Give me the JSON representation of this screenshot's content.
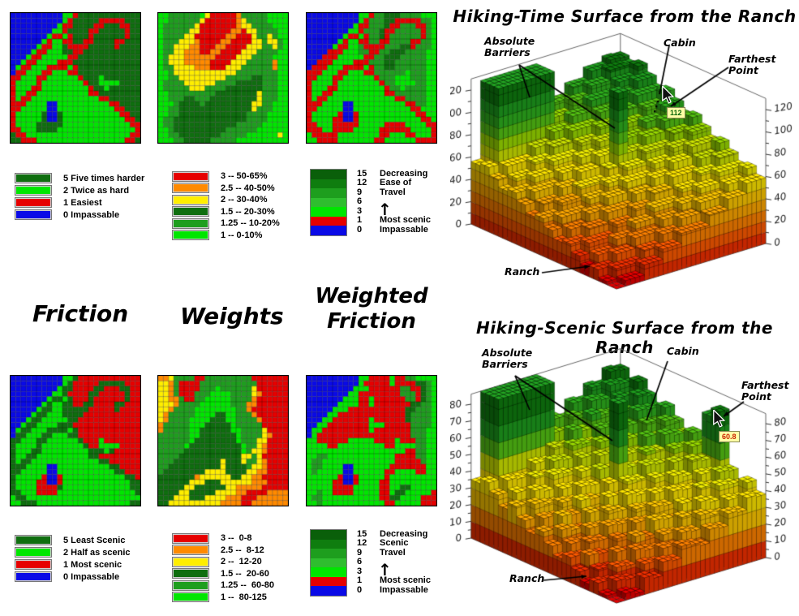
{
  "figure": {
    "section_labels": {
      "friction": "Friction",
      "weights": "Weights",
      "weighted_line1": "Weighted",
      "weighted_line2": "Friction"
    }
  },
  "icons": {
    "up_arrow": "↑"
  },
  "palette": {
    "B": "#0a0ae6",
    "R": "#e60000",
    "D": "#0f6e0f",
    "G": "#1e9e1e",
    "g": "#00e600",
    "Y": "#ffee00",
    "O": "#ff8a00"
  },
  "legends": {
    "friction_time": [
      {
        "color": "#0f6e0f",
        "label": "5 Five times harder"
      },
      {
        "color": "#00e600",
        "label": "2 Twice as hard"
      },
      {
        "color": "#e60000",
        "label": "1 Easiest"
      },
      {
        "color": "#0a0ae6",
        "label": "0 Impassable"
      }
    ],
    "weights_time": [
      {
        "color": "#e60000",
        "label": "3 -- 50-65%"
      },
      {
        "color": "#ff8a00",
        "label": "2.5 -- 40-50%"
      },
      {
        "color": "#ffee00",
        "label": "2 -- 30-40%"
      },
      {
        "color": "#0f6e0f",
        "label": "1.5 -- 20-30%"
      },
      {
        "color": "#1e9e1e",
        "label": "1.25 -- 10-20%"
      },
      {
        "color": "#00e600",
        "label": "1 -- 0-10%"
      }
    ],
    "ramp_time": {
      "bands": [
        {
          "color": "#0a5f0a",
          "num": "15",
          "word": "Decreasing"
        },
        {
          "color": "#0f7d0f",
          "num": "12",
          "word": "Ease of"
        },
        {
          "color": "#1e9e1e",
          "num": "9",
          "word": "Travel"
        },
        {
          "color": "#2fbe2f",
          "num": "6",
          "word": ""
        },
        {
          "color": "#00e600",
          "num": "3",
          "word": ""
        },
        {
          "color": "#e60000",
          "num": "1",
          "word": "Most scenic"
        },
        {
          "color": "#0a0ae6",
          "num": "0",
          "word": "Impassable"
        }
      ]
    },
    "friction_scenic": [
      {
        "color": "#0f6e0f",
        "label": "5 Least Scenic"
      },
      {
        "color": "#00e600",
        "label": "2 Half as scenic"
      },
      {
        "color": "#e60000",
        "label": "1 Most scenic"
      },
      {
        "color": "#0a0ae6",
        "label": "0 Impassable"
      }
    ],
    "weights_scenic": [
      {
        "color": "#e60000",
        "label": "3 --  0-8"
      },
      {
        "color": "#ff8a00",
        "label": "2.5 --  8-12"
      },
      {
        "color": "#ffee00",
        "label": "2 --  12-20"
      },
      {
        "color": "#0f6e0f",
        "label": "1.5 --  20-60"
      },
      {
        "color": "#1e9e1e",
        "label": "1.25 --  60-80"
      },
      {
        "color": "#00e600",
        "label": "1 --  80-125"
      }
    ],
    "ramp_scenic": {
      "bands": [
        {
          "color": "#0a5f0a",
          "num": "15",
          "word": "Decreasing"
        },
        {
          "color": "#0f7d0f",
          "num": "12",
          "word": "Scenic"
        },
        {
          "color": "#1e9e1e",
          "num": "9",
          "word": "Travel"
        },
        {
          "color": "#2fbe2f",
          "num": "6",
          "word": ""
        },
        {
          "color": "#00e600",
          "num": "3",
          "word": ""
        },
        {
          "color": "#e60000",
          "num": "1",
          "word": "Most scenic"
        },
        {
          "color": "#0a0ae6",
          "num": "0",
          "word": "Impassable"
        }
      ]
    }
  },
  "maps": [
    {
      "name": "hiking-friction",
      "rows": [
        "BBBBBBBBBBggRDDDDDDDDDDDD",
        "BBBBBBBBBBgRDDDDDRRRRRDDD",
        "BBBBBBBBBgRRDDDDRRDDDRRDD",
        "BBBBBBBBggRDDDDRRDDDDDRDD",
        "BBBBBBBgRRgRDDDRDDDDDDRDD",
        "BBBBBBgRggRRDDRRDDDDRRDDD",
        "BBBBBgRRggDRRRRDDDDDRDDDD",
        "BBBBgRRgggDDRRDDDDDDDDDDD",
        "BBBgRRgggggRRDDDDDDDDDDDD",
        "BBgRRggggRRRDDDDDDDDDDDDD",
        "BgRRgggRRRRgRDDDDDDDDDDDD",
        "BRRgggRRgggRRDDDDDDDDDDDD",
        "RRgggRRggggggRDDDgDDDDDDD",
        "RggggRggggggggRDDggggDDDD",
        "RgggRRgggggggggRDDgDDDDDD",
        "RggRRggggggggggRRDDDDDDDD",
        "RgRRgggggggggggggRRDDDDDD",
        "RRRggggBBggggggggggRRDDDD",
        "RRgggggBBgggggggggggRRDDD",
        "RgggggDBBDgggggggggggRRDD",
        "RgggggDBBDggggggggggggRRD",
        "RggggDDDDDgggggggggggggRR",
        "RRgggDDDDgggggggggggggggR",
        "DRRggggggggggggggggggggRR",
        "DDRRRgggggggggggggggggRRD"
      ]
    },
    {
      "name": "time-weights",
      "rows": [
        "ggGGGGGGgYRRRRROGGGGGgggg",
        "ggGGGGGGYRRRRRROYGGGGgggg",
        "gGGGGGGYRRRRRRROYYGGGGggg",
        "gGGGGGYYRRRRRROORYYGGGGgg",
        "gGGGGYYRRRRRROORRRYGGYGgg",
        "gGGGYYYORRRROORRRRYYGYYGg",
        "gGGYYYOORRROORRRRYYYGGYGg",
        "gGGYYOOORROORRRRYYYGGGGgg",
        "gGYYYOOOOOORRRRYYYGGGGggg",
        "gGYYYOOOOORRRRYYYGGGGGOgg",
        "gGGYYYYOOORRRYYYGGGGGGOgg",
        "ggGYYYYYYYYYYYYGGGGGGGGgg",
        "ggGGYYYYYYYYYGGGGGDDGGGgg",
        "gGGGGYYYYYYGGGGDDDDDGGGgg",
        "gGGGGGYYYGGGGDDDDDDDGGGgg",
        "ggGGGGGGGGGDDDDDDDDYGGGgg",
        "ggGGGDDGGGDDDDDDDDDYGGGgg",
        "gggGDDDDGDDDDDDDDDYYGGggg",
        "ggGGDDDDDDDDDDDDDDYGGGggg",
        "ggGGDDDDDDDDDDDDDGGGGgggg",
        "gGGDDDDDDDDDDDDDDGGGGgggg",
        "gGGDDDDDDDDDDDDGGGGGggggg",
        "ggGDDDDDDDDDDGGGGGGgggggg",
        "ggGGDDDDDDDDGGGGGggggggYg",
        "gggGGDDDDDGGGGGgggggggggg"
      ]
    },
    {
      "name": "weighted-time-friction",
      "rows": [
        "BBBBBBBBBBggRGGDDDGGGGggg",
        "BBBBBBBBBBgRGGGDDRRRRRGGg",
        "BBBBBBBBBgRRGGGDRRGGGRRGg",
        "BBBBBBBBggRGGGDRRGGGGGRGg",
        "BBBBBBBgRRgRGGDRGGGGGGRGg",
        "BBBBBBgRggRRGGRRGGGGRRGGg",
        "BBBBBgRRggGRRRRGGGDDRGGGg",
        "BBBBRRRgggGGRRGGDDDGGGGgg",
        "BBBRRRgggggRRGGDDDGGGGGgg",
        "BBRRRggggRRRGGGDDGGGGGGgg",
        "BRRRgggRRRRgRGGDDGGGGGGgg",
        "RRRgggRRgggRRGGGGGGgGGGgg",
        "RRgggRRggggggRGGGgggGGGgg",
        "RggggRggggggggRGGggggGGgg",
        "RgggRRgggggggggRGGgGGGGgg",
        "RggRRggggggggggRRGGGGGGgg",
        "RgRRgggggggggggggRRGGGGgg",
        "RRRggggBBggggggggggRRGGgg",
        "RRgggggBBgggggggggggRRggg",
        "RgggggRBBRgggggggggggRRgg",
        "RggggRRBBRggggggggggggRRg",
        "RRgggRRRRRgggggRRRRggggRR",
        "RRRggRRRRgggggRRRRRRggggR",
        "gRRRRRggggggggRRgggRRgggR",
        "ggRRRRgggggggRRggggggRRRR"
      ]
    },
    {
      "name": "scenic-friction",
      "rows": [
        "BBBBBBBBBBggDRRRRRRRRRRRR",
        "BBBBBBBBBBgDRRRRRDDDDDRRR",
        "BBBBBBBBBgDDRRRRDDRRRDDRR",
        "BBBBBBBBggDRRRRDDRRRRRDRR",
        "BBBBBBBgDDgDRRRDRRRRRRDRR",
        "BBBBBBgDggDDRRDDRRRRDDRRR",
        "BBBBBgDDggDDDDDRRRRRDRRRR",
        "BBBBgDDgggDDDDRRRRRRRRRRR",
        "BBBgDDgggggDDRRRRRRRRRRRR",
        "BBgDDggggDDDRRRRRRRRRRRRR",
        "BgDDgggDDDDgDRRRRRRRRRRRR",
        "BDDgggDDgggDDRRRRRRRRRRRR",
        "DDgggDDggggggDRRRgRRRRRRR",
        "DggggDggggggggDRRggggRRRR",
        "DgggDDgggggggggDDDgDRRRRR",
        "DggDDggggggggggDDRRRRRRRR",
        "DgDDgggggggggggggDDRRRRRR",
        "DDDggggBBggggggggggDDRRRR",
        "DDgggggBBgggggggggggDDRRR",
        "DgggggRBBRggggggggggggDDR",
        "DggggRRBBRgggggggggggggDD",
        "DggggRRRRDgggggggggggggDD",
        "DDgggRRRRgggggggggggggggD",
        "gDDgggggggggggggggggggggg",
        "ggDDDggggggggggggggggggDD"
      ]
    },
    {
      "name": "scenic-weights",
      "rows": [
        "OOYGGGGRRGGGGGGGGGRRRRRRR",
        "YYOGRRRRGGGGGGGGGGGRRRRRR",
        "YYOGRRRRGGGgGGGGGGYRRRRRR",
        "YYOGRRRGGGggggGGGGYORRRRR",
        "YYOOGRRGGgggggGGGGORRRRRR",
        "YYYOGGGGggggggGGGOORRRRRR",
        "YYOGGGGggggggggGGORRRRRRR",
        "YOGGGGGggggDDggGGGORRRRRR",
        "YOGGGGggggDDDggGGGGORRRRR",
        "OGGGGGgggDDDDDgGGGGGRRRRR",
        "OGGGGGggDDDDDDggGGGGYRRRR",
        "GGGGGGggDDDDDDDgGGGGYORRR",
        "GGGGGGgDDDDDDDDgGGGYYRRRR",
        "GGGGGgDDDDDDDDDDgGGYORRRR",
        "GGGGGDDDDDDDDDDDgGYYORRRR",
        "GGGGDDDDDDDDDDDDYYGYRRRRR",
        "GGGDDDDDDDDDYDDDYGGYORRRR",
        "GGDDDDDDDDDDYDDDDGYYORRRR",
        "GDDDDDDDDYYYYDDDDYYOORRRR",
        "DDDDDDDOYYYYYYDDYYOORRRRR",
        "DDDDDDYYYDDDYYYYYYOOORRRR",
        "DDDDDYYDDDDDDYYOOOOORRRRR",
        "DDDDYYDDDDDYYYYOORRRROOOO",
        "DDDYYYDDDYYYYOOORRROOOOOO",
        "DDYYYYYYYYYYOOOORROOOOOOO"
      ]
    },
    {
      "name": "weighted-scenic-friction",
      "rows": [
        "BBBBBBBBBBggRRRRgRRGGgggg",
        "BBBBBBBBBBgRRRRRgRRRRDDGg",
        "BBBBBBBBBgggRRRRRRGGRRDGg",
        "BBBBBBBBggRRRRRRRRGGGRDGg",
        "BBBBBBBgggRRgRRRRRRGGRDGg",
        "BBBBBBggggRRgRRRRRRRDDGGg",
        "BBBBBgggRRRRRRRRRRRDDGGGg",
        "BBBBggRRRRRRRRRRRRRDGGGGg",
        "BBBggRRRRRRRgRRRRRRDGGGGg",
        "BBggRRRRRRRRgggRRRRRGGGGg",
        "BggRRRRRRRRRgRRRRRRRGGGgg",
        "BgRRRRRRRRRRRRRRRRRRGGGgg",
        "ggRRRRRRgggggRRRRgRRRGGgg",
        "ggggRRgggggggggRRggggGGgg",
        "gggggggggggggggggggRRGGgg",
        "ggGGgggggggggggggRRRRGGgg",
        "gGGggggggggggggggRRRRRGgg",
        "gGGggggBBgggggggRRRRRRRgg",
        "gGgggggBBggggggRRggggRRgg",
        "ggggggRBBRgggggRggggggggg",
        "gggggRRBBRggggRRggggggggg",
        "gggggRRRRgggggRRggDDggggg",
        "ggGggRRRRgggggRRgDDgggggR",
        "gGGgggggggggggRRDDggggRRR",
        "ggGggggggggggggRRgggggRRR"
      ]
    }
  ],
  "chart_data": [
    {
      "type": "3d-bar-surface",
      "title": "Hiking-Time Surface from the Ranch",
      "z_ticks": [
        0,
        20,
        40,
        60,
        80,
        100,
        120
      ],
      "z_max": 120,
      "tooltip": {
        "value": "112",
        "color": "#0b660b"
      },
      "annotations": {
        "barriers": "Absolute Barriers",
        "cabin": "Cabin",
        "farthest": "Farthest Point",
        "ranch": "Ranch"
      },
      "barrier_height": 126,
      "barriers": [
        {
          "r": [
            14,
            15
          ],
          "c": [
            1,
            6
          ]
        },
        {
          "r": [
            8,
            8
          ],
          "c": [
            8,
            8
          ]
        }
      ],
      "heights": [
        [
          0,
          5,
          5,
          14,
          14,
          23,
          23,
          32,
          32,
          32,
          41,
          41,
          50,
          50,
          59,
          59
        ],
        [
          3,
          12,
          12,
          12,
          21,
          21,
          30,
          30,
          39,
          39,
          48,
          48,
          48,
          57,
          57,
          66
        ],
        [
          10,
          10,
          19,
          19,
          28,
          28,
          28,
          37,
          37,
          46,
          46,
          55,
          55,
          64,
          64,
          64
        ],
        [
          8,
          17,
          17,
          26,
          26,
          35,
          35,
          44,
          44,
          44,
          53,
          53,
          62,
          62,
          71,
          71
        ],
        [
          15,
          24,
          24,
          24,
          33,
          33,
          42,
          42,
          51,
          51,
          60,
          60,
          60,
          69,
          69,
          78
        ],
        [
          22,
          22,
          31,
          31,
          40,
          40,
          40,
          49,
          49,
          58,
          58,
          67,
          67,
          76,
          76,
          76
        ],
        [
          20,
          29,
          29,
          38,
          38,
          47,
          47,
          56,
          56,
          56,
          65,
          65,
          74,
          74,
          83,
          83
        ],
        [
          27,
          36,
          36,
          36,
          45,
          45,
          54,
          54,
          63,
          63,
          72,
          72,
          72,
          81,
          81,
          90
        ],
        [
          34,
          34,
          43,
          43,
          52,
          52,
          52,
          61,
          61,
          70,
          70,
          79,
          79,
          88,
          88,
          88
        ],
        [
          32,
          41,
          41,
          50,
          50,
          59,
          59,
          68,
          68,
          68,
          77,
          77,
          86,
          86,
          95,
          95
        ],
        [
          39,
          48,
          48,
          48,
          57,
          57,
          66,
          66,
          75,
          75,
          84,
          84,
          84,
          93,
          93,
          102
        ],
        [
          46,
          46,
          55,
          55,
          64,
          64,
          64,
          73,
          73,
          82,
          82,
          91,
          91,
          100,
          100,
          100
        ],
        [
          44,
          53,
          53,
          62,
          62,
          71,
          71,
          80,
          80,
          80,
          89,
          89,
          98,
          98,
          107,
          107
        ],
        [
          51,
          60,
          60,
          60,
          69,
          69,
          78,
          78,
          87,
          87,
          96,
          96,
          96,
          105,
          105,
          114
        ],
        [
          58,
          58,
          67,
          67,
          76,
          76,
          76,
          85,
          85,
          94,
          94,
          103,
          103,
          112,
          112,
          111
        ],
        [
          56,
          65,
          65,
          74,
          74,
          83,
          83,
          92,
          92,
          92,
          101,
          101,
          110,
          110,
          115,
          114
        ]
      ]
    },
    {
      "type": "3d-bar-surface",
      "title": "Hiking-Scenic Surface from the Ranch",
      "z_ticks": [
        0,
        10,
        20,
        30,
        40,
        50,
        60,
        70,
        80
      ],
      "z_max": 80,
      "tooltip": {
        "value": "60.8",
        "color": "#cc2200"
      },
      "annotations": {
        "barriers": "Absolute Barriers",
        "cabin": "Cabin",
        "farthest": "Farthest Point",
        "ranch": "Ranch"
      },
      "barrier_height": 86,
      "barriers": [
        {
          "r": [
            14,
            15
          ],
          "c": [
            1,
            6
          ]
        },
        {
          "r": [
            8,
            8
          ],
          "c": [
            8,
            8
          ]
        }
      ],
      "heights": [
        [
          0,
          4,
          2,
          10,
          8,
          16,
          15,
          22,
          21,
          19,
          27,
          26,
          33,
          32,
          39,
          38
        ],
        [
          2,
          9,
          8,
          6,
          14,
          13,
          20,
          19,
          26,
          25,
          33,
          31,
          30,
          37,
          36,
          44
        ],
        [
          7,
          6,
          13,
          12,
          20,
          18,
          17,
          24,
          23,
          31,
          29,
          37,
          35,
          43,
          42,
          40
        ],
        [
          4,
          11,
          10,
          18,
          16,
          24,
          22,
          30,
          29,
          27,
          35,
          33,
          41,
          40,
          47,
          46
        ],
        [
          9,
          17,
          16,
          14,
          22,
          20,
          28,
          27,
          34,
          33,
          40,
          39,
          38,
          45,
          44,
          79
        ],
        [
          15,
          14,
          21,
          20,
          27,
          26,
          25,
          32,
          31,
          38,
          37,
          45,
          43,
          51,
          49,
          74
        ],
        [
          12,
          19,
          18,
          25,
          24,
          32,
          30,
          38,
          36,
          35,
          43,
          41,
          49,
          47,
          55,
          54
        ],
        [
          17,
          25,
          23,
          22,
          30,
          28,
          36,
          34,
          42,
          41,
          48,
          47,
          45,
          53,
          52,
          59
        ],
        [
          23,
          21,
          29,
          28,
          35,
          34,
          32,
          40,
          39,
          46,
          45,
          52,
          51,
          59,
          57,
          56
        ],
        [
          19,
          27,
          26,
          33,
          32,
          39,
          38,
          46,
          44,
          43,
          50,
          49,
          57,
          55,
          63,
          61
        ],
        [
          25,
          33,
          31,
          30,
          37,
          36,
          44,
          42,
          50,
          48,
          56,
          55,
          53,
          61,
          59,
          67
        ],
        [
          31,
          29,
          37,
          35,
          43,
          42,
          40,
          48,
          46,
          54,
          53,
          60,
          59,
          66,
          65,
          64
        ],
        [
          27,
          35,
          33,
          41,
          40,
          47,
          46,
          53,
          52,
          51,
          58,
          57,
          64,
          63,
          71,
          69
        ],
        [
          33,
          40,
          39,
          38,
          45,
          44,
          51,
          50,
          58,
          56,
          64,
          62,
          61,
          69,
          67,
          75
        ],
        [
          38,
          37,
          45,
          43,
          51,
          49,
          48,
          56,
          54,
          62,
          60,
          68,
          67,
          74,
          73,
          71
        ],
        [
          35,
          43,
          41,
          49,
          47,
          55,
          54,
          61,
          60,
          58,
          66,
          65,
          72,
          71,
          78,
          77
        ]
      ]
    }
  ]
}
